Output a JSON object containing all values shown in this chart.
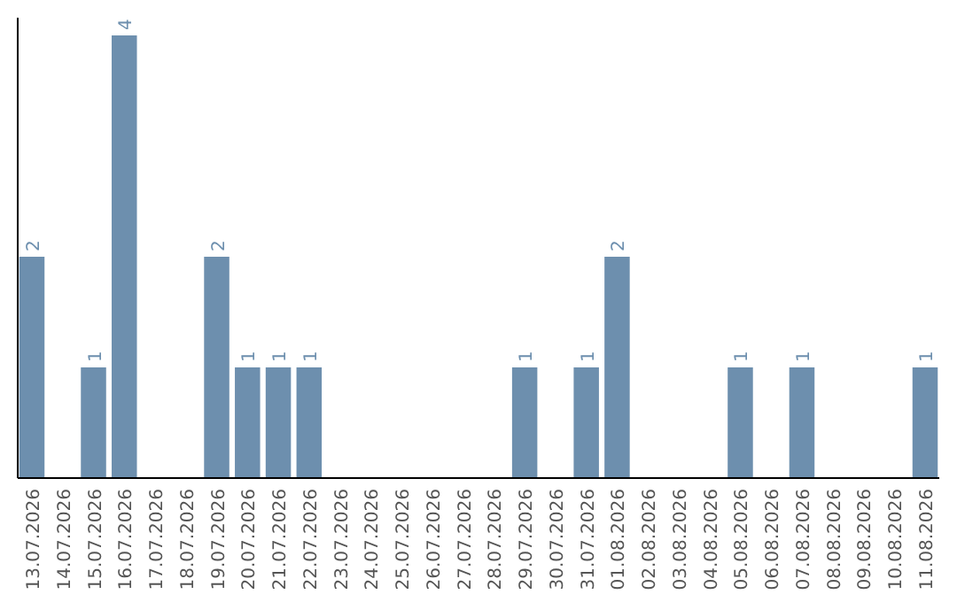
{
  "chart_data": {
    "type": "bar",
    "categories": [
      "13.07.2026",
      "14.07.2026",
      "15.07.2026",
      "16.07.2026",
      "17.07.2026",
      "18.07.2026",
      "19.07.2026",
      "20.07.2026",
      "21.07.2026",
      "22.07.2026",
      "23.07.2026",
      "24.07.2026",
      "25.07.2026",
      "26.07.2026",
      "27.07.2026",
      "28.07.2026",
      "29.07.2026",
      "30.07.2026",
      "31.07.2026",
      "01.08.2026",
      "02.08.2026",
      "03.08.2026",
      "04.08.2026",
      "05.08.2026",
      "06.08.2026",
      "07.08.2026",
      "08.08.2026",
      "09.08.2026",
      "10.08.2026",
      "11.08.2026"
    ],
    "values": [
      2,
      0,
      1,
      4,
      0,
      0,
      2,
      1,
      1,
      1,
      0,
      0,
      0,
      0,
      0,
      0,
      1,
      0,
      1,
      2,
      0,
      0,
      0,
      1,
      0,
      1,
      0,
      0,
      0,
      1
    ],
    "value_labels": [
      "2",
      null,
      "1",
      "4",
      null,
      null,
      "2",
      "1",
      "1",
      "1",
      null,
      null,
      null,
      null,
      null,
      null,
      "1",
      null,
      "1",
      "2",
      null,
      null,
      null,
      "1",
      null,
      "1",
      null,
      null,
      null,
      "1"
    ],
    "color": "#6d8fae",
    "ylim": [
      0,
      4.16
    ],
    "tick_labels": "x"
  }
}
